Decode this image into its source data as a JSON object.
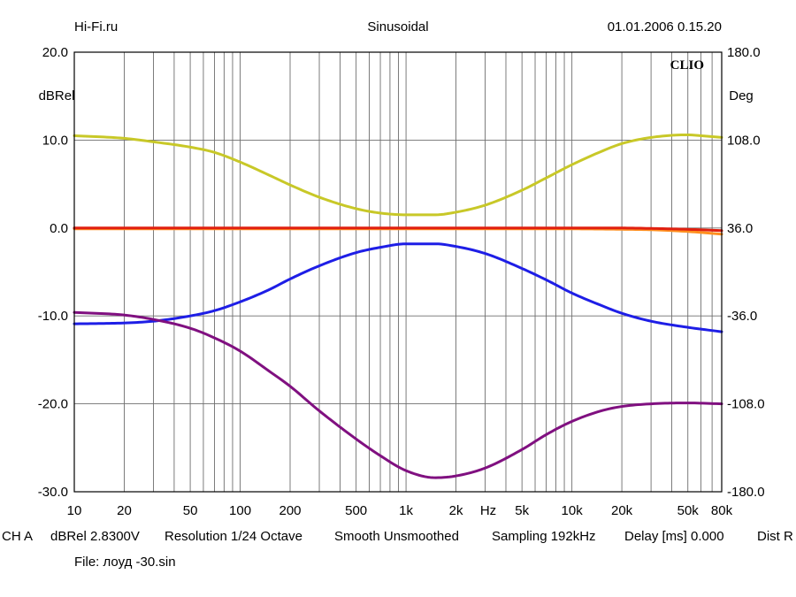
{
  "header": {
    "site": "Hi-Fi.ru",
    "mode": "Sinusoidal",
    "datetime": "01.01.2006 0.15.20"
  },
  "chart_data": {
    "type": "line",
    "xscale": "log",
    "xlim": [
      10,
      80000
    ],
    "ylim_left": [
      -30,
      20
    ],
    "ylim_right": [
      -180,
      180
    ],
    "ylabel_left": "dBRel",
    "ylabel_right": "Deg",
    "xunit_label": "Hz",
    "logo": "CLIO",
    "grid": true,
    "x_ticks": [
      10,
      20,
      50,
      100,
      200,
      500,
      1000,
      2000,
      5000,
      10000,
      20000,
      50000,
      80000
    ],
    "x_tick_labels": [
      "10",
      "20",
      "50",
      "100",
      "200",
      "500",
      "1k",
      "2k",
      "5k",
      "10k",
      "20k",
      "50k",
      "80k"
    ],
    "y_left_ticks": [
      20,
      10,
      0,
      -10,
      -20,
      -30
    ],
    "y_left_tick_labels": [
      "20.0",
      "10.0",
      "0.0",
      "-10.0",
      "-20.0",
      "-30.0"
    ],
    "y_right_ticks": [
      180,
      108,
      36,
      -36,
      -108,
      -180
    ],
    "y_right_tick_labels": [
      "180.0",
      "108.0",
      "36.0",
      "-36.0",
      "-108.0",
      "-180.0"
    ],
    "series": [
      {
        "color": "#c8c828",
        "axis": "left",
        "x": [
          10,
          20,
          30,
          50,
          70,
          100,
          150,
          200,
          300,
          500,
          700,
          1000,
          1500,
          2000,
          3000,
          5000,
          7000,
          10000,
          15000,
          20000,
          30000,
          50000,
          60000,
          80000
        ],
        "y": [
          10.5,
          10.2,
          9.8,
          9.2,
          8.6,
          7.5,
          6.0,
          4.9,
          3.5,
          2.2,
          1.7,
          1.5,
          1.5,
          1.8,
          2.6,
          4.3,
          5.7,
          7.2,
          8.7,
          9.6,
          10.3,
          10.6,
          10.5,
          10.3
        ]
      },
      {
        "color": "#ff9020",
        "axis": "left",
        "x": [
          10,
          100,
          1000,
          10000,
          20000,
          30000,
          50000,
          80000
        ],
        "y": [
          -0.1,
          -0.1,
          -0.1,
          -0.1,
          -0.15,
          -0.2,
          -0.4,
          -0.7
        ]
      },
      {
        "color": "#e02010",
        "axis": "left",
        "x": [
          10,
          100,
          1000,
          10000,
          20000,
          30000,
          50000,
          80000
        ],
        "y": [
          0.0,
          0.0,
          0.0,
          0.0,
          0.0,
          -0.05,
          -0.15,
          -0.3
        ]
      },
      {
        "color": "#1e1ee6",
        "axis": "left",
        "x": [
          10,
          20,
          30,
          50,
          70,
          100,
          150,
          200,
          300,
          500,
          700,
          1000,
          1500,
          2000,
          3000,
          5000,
          7000,
          10000,
          15000,
          20000,
          30000,
          50000,
          80000
        ],
        "y": [
          -10.9,
          -10.8,
          -10.6,
          -10.0,
          -9.4,
          -8.4,
          -7.0,
          -5.8,
          -4.3,
          -2.8,
          -2.2,
          -1.8,
          -1.8,
          -2.1,
          -2.9,
          -4.6,
          -5.9,
          -7.4,
          -8.8,
          -9.7,
          -10.6,
          -11.3,
          -11.8
        ]
      },
      {
        "color": "#801080",
        "axis": "left",
        "x": [
          10,
          20,
          30,
          50,
          70,
          100,
          150,
          200,
          300,
          500,
          700,
          1000,
          1500,
          2000,
          3000,
          5000,
          7000,
          10000,
          15000,
          20000,
          30000,
          50000,
          80000
        ],
        "y": [
          -9.6,
          -9.9,
          -10.4,
          -11.4,
          -12.5,
          -14.0,
          -16.3,
          -18.0,
          -20.8,
          -24.0,
          -25.9,
          -27.6,
          -28.4,
          -28.2,
          -27.3,
          -25.2,
          -23.5,
          -22.0,
          -20.8,
          -20.3,
          -20.0,
          -19.9,
          -20.0
        ]
      }
    ]
  },
  "footer": {
    "channel": "CH A",
    "unit_info": "dBRel 2.8300V",
    "resolution": "Resolution 1/24 Octave",
    "smoothing": "Smooth Unsmoothed",
    "sampling": "Sampling 192kHz",
    "delay": "Delay [ms] 0.000",
    "dist": "Dist R",
    "file": "File: лоуд -30.sin"
  }
}
